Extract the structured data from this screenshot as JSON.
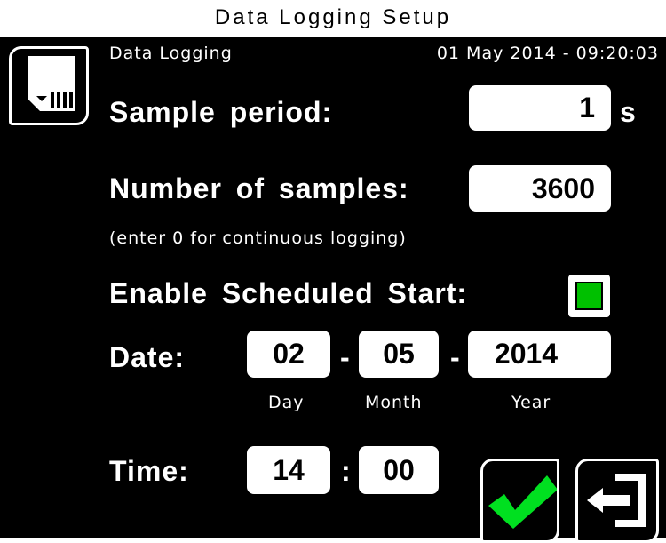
{
  "page_title": "Data Logging Setup",
  "header": {
    "screen_name": "Data Logging",
    "datetime": "01 May 2014 - 09:20:03"
  },
  "sample_period": {
    "label": "Sample period:",
    "value": "1",
    "unit": "s"
  },
  "num_samples": {
    "label": "Number of samples:",
    "value": "3600",
    "hint": "(enter 0 for continuous logging)"
  },
  "scheduled": {
    "label": "Enable Scheduled Start:",
    "checked": true,
    "check_color": "#00c000"
  },
  "date": {
    "label": "Date:",
    "day": "02",
    "month": "05",
    "year": "2014",
    "sep": "-",
    "day_label": "Day",
    "month_label": "Month",
    "year_label": "Year"
  },
  "time": {
    "label": "Time:",
    "hour": "14",
    "minute": "00",
    "sep": ":"
  },
  "icons": {
    "sd": "sd-card-icon",
    "confirm": "checkmark-icon",
    "exit": "exit-icon"
  },
  "colors": {
    "accent": "#00e020"
  }
}
